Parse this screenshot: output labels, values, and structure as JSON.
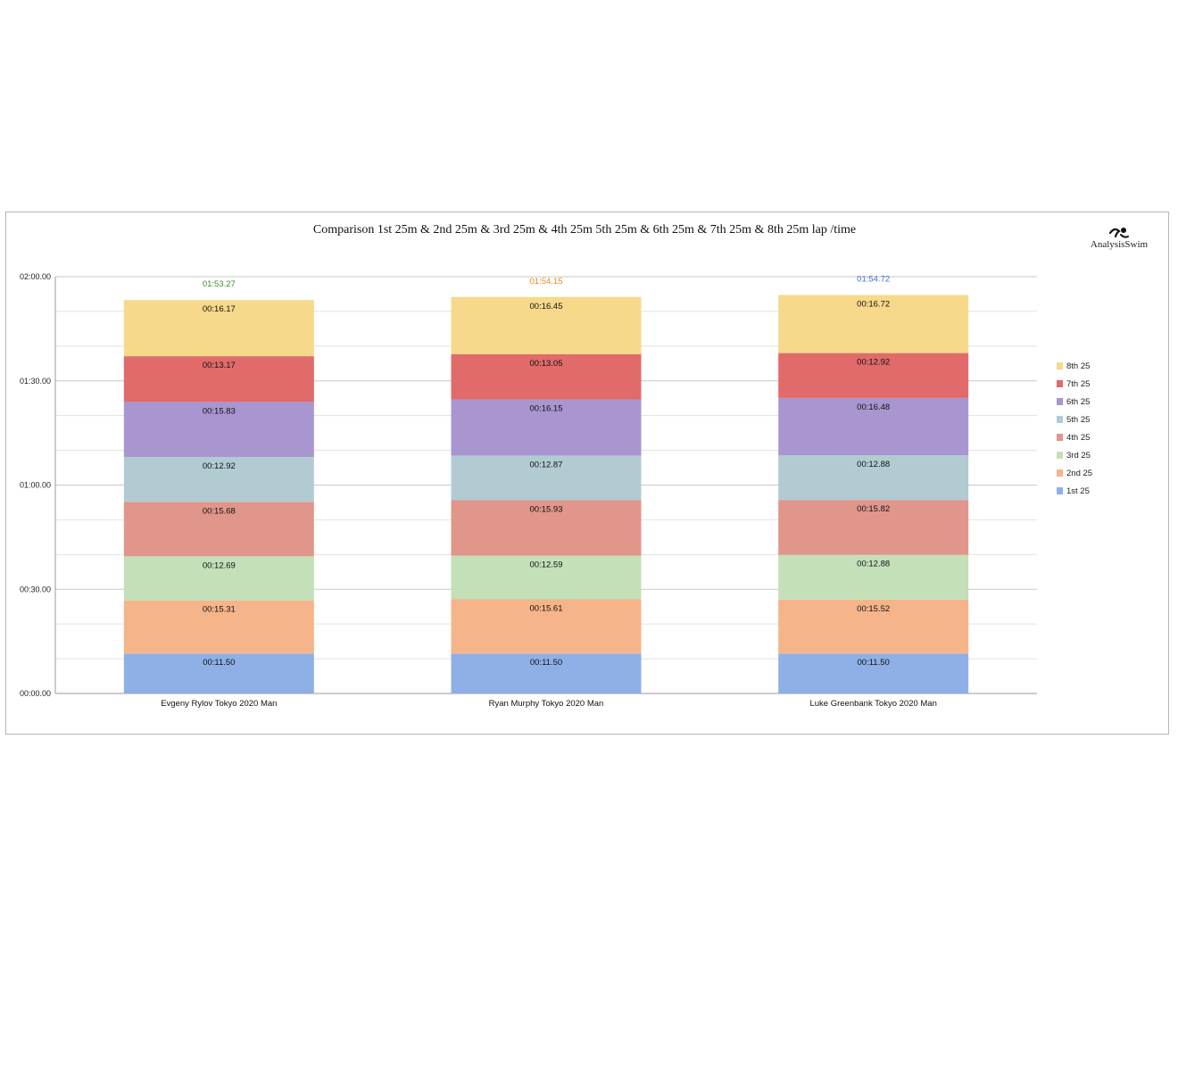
{
  "chart_data": {
    "type": "bar",
    "stacked": true,
    "title": "Comparison 1st 25m & 2nd 25m & 3rd 25m & 4th 25m 5th 25m & 6th 25m & 7th 25m & 8th 25m lap /time",
    "logo_text": "AnalysisSwim",
    "categories": [
      "Evgeny Rylov Tokyo 2020 Man",
      "Ryan Murphy Tokyo 2020 Man",
      "Luke Greenbank Tokyo 2020 Man"
    ],
    "y_unit": "seconds",
    "ylim": [
      0,
      120
    ],
    "y_ticks": [
      {
        "value": 0,
        "label": "00:00.00"
      },
      {
        "value": 30,
        "label": "00:30.00"
      },
      {
        "value": 60,
        "label": "01:00.00"
      },
      {
        "value": 90,
        "label": "01:30.00"
      },
      {
        "value": 120,
        "label": "02:00.00"
      }
    ],
    "grid": true,
    "legend_position": "right",
    "series": [
      {
        "name": "1st 25",
        "color": "#8eb0e6",
        "values": [
          11.5,
          11.5,
          11.5
        ],
        "labels": [
          "00:11.50",
          "00:11.50",
          "00:11.50"
        ]
      },
      {
        "name": "2nd 25",
        "color": "#f6b48a",
        "values": [
          15.31,
          15.61,
          15.52
        ],
        "labels": [
          "00:15.31",
          "00:15.61",
          "00:15.52"
        ]
      },
      {
        "name": "3rd 25",
        "color": "#c3e0b8",
        "values": [
          12.69,
          12.59,
          12.88
        ],
        "labels": [
          "00:12.69",
          "00:12.59",
          "00:12.88"
        ]
      },
      {
        "name": "4th 25",
        "color": "#e0968a",
        "values": [
          15.68,
          15.93,
          15.82
        ],
        "labels": [
          "00:15.68",
          "00:15.93",
          "00:15.82"
        ]
      },
      {
        "name": "5th 25",
        "color": "#b2cbd3",
        "values": [
          12.92,
          12.87,
          12.88
        ],
        "labels": [
          "00:12.92",
          "00:12.87",
          "00:12.88"
        ]
      },
      {
        "name": "6th 25",
        "color": "#a996d0",
        "values": [
          15.83,
          16.15,
          16.48
        ],
        "labels": [
          "00:15.83",
          "00:16.15",
          "00:16.48"
        ]
      },
      {
        "name": "7th 25",
        "color": "#e16a6a",
        "values": [
          13.17,
          13.05,
          12.92
        ],
        "labels": [
          "00:13.17",
          "00:13.05",
          "00:12.92"
        ]
      },
      {
        "name": "8th 25",
        "color": "#f6d98a",
        "values": [
          16.17,
          16.45,
          16.72
        ],
        "labels": [
          "00:16.17",
          "00:16.45",
          "00:16.72"
        ]
      }
    ],
    "totals": [
      {
        "label": "01:53.27",
        "value": 113.27,
        "color": "#3a8a2e"
      },
      {
        "label": "01:54.15",
        "value": 114.15,
        "color": "#e8891e"
      },
      {
        "label": "01:54.72",
        "value": 114.72,
        "color": "#3a6fd1"
      }
    ]
  }
}
